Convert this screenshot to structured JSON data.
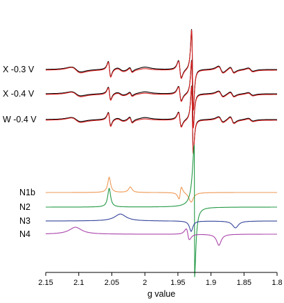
{
  "chart_data": {
    "type": "line",
    "xlabel": "g value",
    "xlim": [
      2.15,
      1.8
    ],
    "x_reversed": true,
    "x_ticks": [
      "2.15",
      "2.1",
      "2.05",
      "2",
      "1.95",
      "1.9",
      "1.85",
      "1.8"
    ],
    "y_axis_shown": false,
    "grid": false,
    "experimental_color": "#000000",
    "simulation_color": "#dd2222",
    "spectra": [
      {
        "label": "X -0.3 V",
        "offset": 0
      },
      {
        "label": "X -0.4 V",
        "offset": 1
      },
      {
        "label": "W -0.4 V",
        "offset": 2
      }
    ],
    "components": [
      {
        "label": "N1b",
        "color": "#ee9955",
        "g": [
          2.054,
          2.022,
          1.946
        ]
      },
      {
        "label": "N2",
        "color": "#229944",
        "g": [
          2.054,
          1.925
        ]
      },
      {
        "label": "N3",
        "color": "#334499",
        "g": [
          2.037,
          1.934,
          1.863
        ]
      },
      {
        "label": "N4",
        "color": "#aa44aa",
        "g": [
          2.105,
          1.935,
          1.888
        ]
      }
    ]
  }
}
